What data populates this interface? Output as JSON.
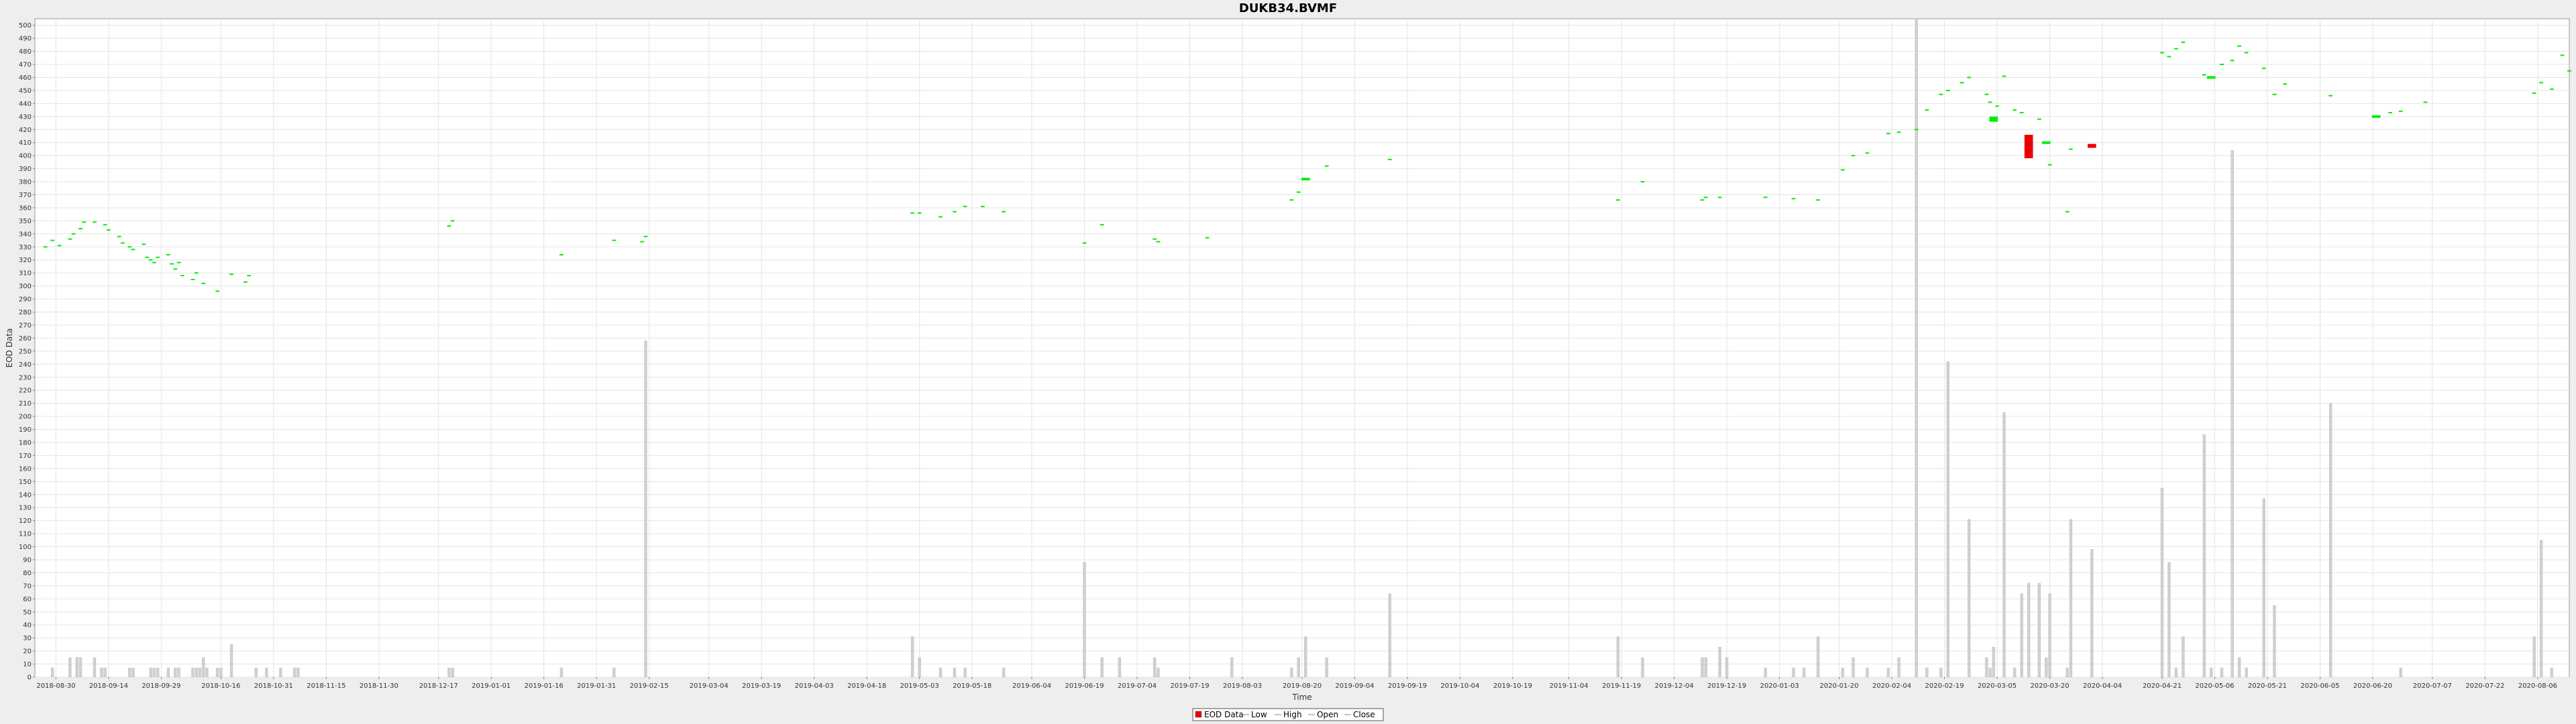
{
  "chart_data": {
    "type": "candlestick",
    "title": "DUKB34.BVMF",
    "xlabel": "Time",
    "ylabel": "EOD Data",
    "ylim": [
      0,
      505
    ],
    "y_ticks": [
      0,
      10,
      20,
      30,
      40,
      50,
      60,
      70,
      80,
      90,
      100,
      110,
      120,
      130,
      140,
      150,
      160,
      170,
      180,
      190,
      200,
      210,
      220,
      230,
      240,
      250,
      260,
      270,
      280,
      290,
      300,
      310,
      320,
      330,
      340,
      350,
      360,
      370,
      380,
      390,
      400,
      410,
      420,
      430,
      440,
      450,
      460,
      470,
      480,
      490,
      500
    ],
    "x_start": "2018-08-24",
    "x_end": "2020-08-15",
    "x_ticks": [
      "2018-08-30",
      "2018-09-14",
      "2018-09-29",
      "2018-10-16",
      "2018-10-31",
      "2018-11-15",
      "2018-11-30",
      "2018-12-17",
      "2019-01-01",
      "2019-01-16",
      "2019-01-31",
      "2019-02-15",
      "2019-03-04",
      "2019-03-19",
      "2019-04-03",
      "2019-04-18",
      "2019-05-03",
      "2019-05-18",
      "2019-06-04",
      "2019-06-19",
      "2019-07-04",
      "2019-07-19",
      "2019-08-03",
      "2019-08-20",
      "2019-09-04",
      "2019-09-19",
      "2019-10-04",
      "2019-10-19",
      "2019-11-04",
      "2019-11-19",
      "2019-12-04",
      "2019-12-19",
      "2020-01-03",
      "2020-01-20",
      "2020-02-04",
      "2020-02-19",
      "2020-03-05",
      "2020-03-20",
      "2020-04-04",
      "2020-04-21",
      "2020-05-06",
      "2020-05-21",
      "2020-06-05",
      "2020-06-20",
      "2020-07-07",
      "2020-07-22",
      "2020-08-06"
    ],
    "grid": true,
    "legend": {
      "placement": "bottom-center",
      "entries": [
        "EOD Data",
        "Low",
        "High",
        "Open",
        "Close"
      ]
    },
    "colors": {
      "up": "#00ee00",
      "down": "#ee0000",
      "volume": "#d0d0d0",
      "grid": "#e4e4e4"
    },
    "candles": [
      [
        "2018-08-27",
        330,
        330
      ],
      [
        "2018-08-29",
        335,
        335
      ],
      [
        "2018-08-31",
        331,
        331
      ],
      [
        "2018-09-03",
        336,
        336
      ],
      [
        "2018-09-04",
        340,
        340
      ],
      [
        "2018-09-06",
        344,
        344
      ],
      [
        "2018-09-07",
        349,
        349
      ],
      [
        "2018-09-10",
        349,
        349
      ],
      [
        "2018-09-13",
        347,
        347
      ],
      [
        "2018-09-14",
        343,
        343
      ],
      [
        "2018-09-17",
        338,
        338
      ],
      [
        "2018-09-18",
        333,
        333
      ],
      [
        "2018-09-20",
        330,
        330
      ],
      [
        "2018-09-21",
        328,
        328
      ],
      [
        "2018-09-24",
        332,
        332
      ],
      [
        "2018-09-25",
        322,
        322
      ],
      [
        "2018-09-26",
        320,
        320
      ],
      [
        "2018-09-27",
        318,
        318
      ],
      [
        "2018-09-28",
        322,
        322
      ],
      [
        "2018-10-01",
        324,
        324
      ],
      [
        "2018-10-02",
        317,
        317
      ],
      [
        "2018-10-03",
        313,
        313
      ],
      [
        "2018-10-04",
        318,
        318
      ],
      [
        "2018-10-05",
        308,
        308
      ],
      [
        "2018-10-08",
        305,
        305
      ],
      [
        "2018-10-09",
        310,
        310
      ],
      [
        "2018-10-11",
        302,
        302
      ],
      [
        "2018-10-15",
        296,
        296
      ],
      [
        "2018-10-19",
        309,
        309
      ],
      [
        "2018-10-23",
        303,
        303
      ],
      [
        "2018-10-24",
        308,
        308
      ],
      [
        "2018-12-20",
        346,
        346
      ],
      [
        "2018-12-21",
        350,
        350
      ],
      [
        "2019-01-21",
        324,
        324
      ],
      [
        "2019-02-05",
        335,
        335
      ],
      [
        "2019-02-13",
        334,
        334
      ],
      [
        "2019-02-14",
        338,
        338
      ],
      [
        "2019-05-01",
        356,
        356
      ],
      [
        "2019-05-03",
        356,
        356
      ],
      [
        "2019-05-09",
        353,
        353
      ],
      [
        "2019-05-13",
        357,
        357
      ],
      [
        "2019-05-16",
        361,
        361
      ],
      [
        "2019-05-21",
        361,
        361
      ],
      [
        "2019-05-27",
        357,
        357
      ],
      [
        "2019-06-19",
        333,
        333
      ],
      [
        "2019-06-24",
        347,
        347
      ],
      [
        "2019-07-09",
        336,
        336
      ],
      [
        "2019-07-10",
        334,
        334
      ],
      [
        "2019-07-24",
        337,
        337
      ],
      [
        "2019-08-17",
        366,
        366
      ],
      [
        "2019-08-19",
        372,
        372
      ],
      [
        "2019-08-21",
        381,
        383
      ],
      [
        "2019-08-27",
        392,
        392
      ],
      [
        "2019-09-14",
        397,
        397
      ],
      [
        "2019-11-18",
        366,
        366
      ],
      [
        "2019-11-25",
        380,
        380
      ],
      [
        "2019-12-12",
        366,
        366
      ],
      [
        "2019-12-13",
        368,
        368
      ],
      [
        "2019-12-17",
        368,
        368
      ],
      [
        "2019-12-30",
        368,
        368
      ],
      [
        "2020-01-07",
        367,
        367
      ],
      [
        "2020-01-14",
        366,
        366
      ],
      [
        "2020-01-21",
        389,
        389
      ],
      [
        "2020-01-24",
        400,
        400
      ],
      [
        "2020-01-28",
        402,
        402
      ],
      [
        "2020-02-03",
        417,
        417
      ],
      [
        "2020-02-06",
        418,
        418
      ],
      [
        "2020-02-11",
        420,
        420
      ],
      [
        "2020-02-14",
        435,
        435
      ],
      [
        "2020-02-18",
        447,
        447
      ],
      [
        "2020-02-20",
        450,
        450
      ],
      [
        "2020-02-24",
        456,
        456
      ],
      [
        "2020-02-26",
        460,
        460
      ],
      [
        "2020-03-02",
        447,
        447
      ],
      [
        "2020-03-03",
        441,
        441
      ],
      [
        "2020-03-04",
        426,
        430
      ],
      [
        "2020-03-05",
        438,
        438
      ],
      [
        "2020-03-07",
        461,
        461
      ],
      [
        "2020-03-10",
        435,
        435
      ],
      [
        "2020-03-12",
        433,
        433
      ],
      [
        "2020-03-14",
        416,
        398
      ],
      [
        "2020-03-17",
        428,
        428
      ],
      [
        "2020-03-19",
        409,
        411
      ],
      [
        "2020-03-20",
        393,
        393
      ],
      [
        "2020-03-25",
        357,
        357
      ],
      [
        "2020-03-26",
        405,
        405
      ],
      [
        "2020-04-01",
        409,
        406
      ],
      [
        "2020-04-21",
        479,
        479
      ],
      [
        "2020-04-23",
        476,
        476
      ],
      [
        "2020-04-25",
        482,
        482
      ],
      [
        "2020-04-27",
        487,
        487
      ],
      [
        "2020-05-03",
        462,
        462
      ],
      [
        "2020-05-05",
        459,
        461
      ],
      [
        "2020-05-08",
        470,
        470
      ],
      [
        "2020-05-11",
        473,
        473
      ],
      [
        "2020-05-13",
        484,
        484
      ],
      [
        "2020-05-15",
        479,
        479
      ],
      [
        "2020-05-20",
        467,
        467
      ],
      [
        "2020-05-23",
        447,
        447
      ],
      [
        "2020-05-26",
        455,
        455
      ],
      [
        "2020-06-08",
        446,
        446
      ],
      [
        "2020-06-21",
        429,
        431
      ],
      [
        "2020-06-25",
        433,
        433
      ],
      [
        "2020-06-28",
        434,
        434
      ],
      [
        "2020-07-05",
        441,
        441
      ],
      [
        "2020-08-05",
        448,
        448
      ],
      [
        "2020-08-07",
        456,
        456
      ],
      [
        "2020-08-10",
        451,
        451
      ],
      [
        "2020-08-13",
        477,
        477
      ],
      [
        "2020-08-15",
        465,
        465
      ]
    ],
    "volume": [
      [
        "2018-08-29",
        7
      ],
      [
        "2018-09-03",
        15
      ],
      [
        "2018-09-05",
        15
      ],
      [
        "2018-09-06",
        15
      ],
      [
        "2018-09-10",
        15
      ],
      [
        "2018-09-12",
        7
      ],
      [
        "2018-09-13",
        7
      ],
      [
        "2018-09-20",
        7
      ],
      [
        "2018-09-21",
        7
      ],
      [
        "2018-09-26",
        7
      ],
      [
        "2018-09-27",
        7
      ],
      [
        "2018-09-28",
        7
      ],
      [
        "2018-10-01",
        7
      ],
      [
        "2018-10-03",
        7
      ],
      [
        "2018-10-04",
        7
      ],
      [
        "2018-10-08",
        7
      ],
      [
        "2018-10-09",
        7
      ],
      [
        "2018-10-10",
        7
      ],
      [
        "2018-10-11",
        15
      ],
      [
        "2018-10-12",
        7
      ],
      [
        "2018-10-15",
        7
      ],
      [
        "2018-10-16",
        7
      ],
      [
        "2018-10-19",
        25
      ],
      [
        "2018-10-26",
        7
      ],
      [
        "2018-10-29",
        7
      ],
      [
        "2018-11-02",
        7
      ],
      [
        "2018-11-06",
        7
      ],
      [
        "2018-11-07",
        7
      ],
      [
        "2018-12-20",
        7
      ],
      [
        "2018-12-21",
        7
      ],
      [
        "2019-01-21",
        7
      ],
      [
        "2019-02-05",
        7
      ],
      [
        "2019-02-14",
        258
      ],
      [
        "2019-05-01",
        31
      ],
      [
        "2019-05-03",
        15
      ],
      [
        "2019-05-09",
        7
      ],
      [
        "2019-05-13",
        7
      ],
      [
        "2019-05-16",
        7
      ],
      [
        "2019-05-27",
        7
      ],
      [
        "2019-06-19",
        88
      ],
      [
        "2019-06-24",
        15
      ],
      [
        "2019-06-29",
        15
      ],
      [
        "2019-07-09",
        15
      ],
      [
        "2019-07-10",
        7
      ],
      [
        "2019-07-31",
        15
      ],
      [
        "2019-08-17",
        7
      ],
      [
        "2019-08-19",
        15
      ],
      [
        "2019-08-21",
        31
      ],
      [
        "2019-08-27",
        15
      ],
      [
        "2019-09-14",
        64
      ],
      [
        "2019-11-18",
        31
      ],
      [
        "2019-11-25",
        15
      ],
      [
        "2019-12-12",
        15
      ],
      [
        "2019-12-13",
        15
      ],
      [
        "2019-12-17",
        23
      ],
      [
        "2019-12-19",
        15
      ],
      [
        "2019-12-30",
        7
      ],
      [
        "2020-01-07",
        7
      ],
      [
        "2020-01-10",
        7
      ],
      [
        "2020-01-14",
        31
      ],
      [
        "2020-01-21",
        7
      ],
      [
        "2020-01-24",
        15
      ],
      [
        "2020-01-28",
        7
      ],
      [
        "2020-02-03",
        7
      ],
      [
        "2020-02-06",
        15
      ],
      [
        "2020-02-11",
        505
      ],
      [
        "2020-02-14",
        7
      ],
      [
        "2020-02-18",
        7
      ],
      [
        "2020-02-20",
        242
      ],
      [
        "2020-02-26",
        121
      ],
      [
        "2020-03-02",
        15
      ],
      [
        "2020-03-03",
        7
      ],
      [
        "2020-03-04",
        23
      ],
      [
        "2020-03-07",
        203
      ],
      [
        "2020-03-10",
        7
      ],
      [
        "2020-03-12",
        64
      ],
      [
        "2020-03-14",
        72
      ],
      [
        "2020-03-17",
        72
      ],
      [
        "2020-03-19",
        15
      ],
      [
        "2020-03-20",
        64
      ],
      [
        "2020-03-25",
        7
      ],
      [
        "2020-03-26",
        121
      ],
      [
        "2020-04-01",
        98
      ],
      [
        "2020-04-21",
        145
      ],
      [
        "2020-04-23",
        88
      ],
      [
        "2020-04-25",
        7
      ],
      [
        "2020-04-27",
        31
      ],
      [
        "2020-05-03",
        186
      ],
      [
        "2020-05-05",
        7
      ],
      [
        "2020-05-08",
        7
      ],
      [
        "2020-05-11",
        404
      ],
      [
        "2020-05-13",
        15
      ],
      [
        "2020-05-15",
        7
      ],
      [
        "2020-05-20",
        137
      ],
      [
        "2020-05-23",
        55
      ],
      [
        "2020-06-08",
        210
      ],
      [
        "2020-06-28",
        7
      ],
      [
        "2020-08-05",
        31
      ],
      [
        "2020-08-07",
        105
      ],
      [
        "2020-08-10",
        7
      ]
    ]
  }
}
